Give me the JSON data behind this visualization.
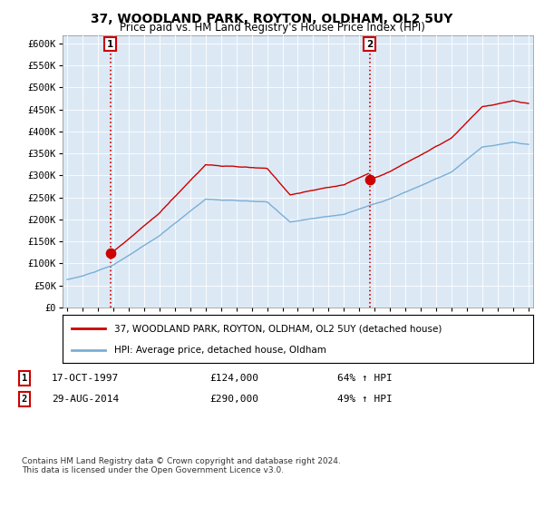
{
  "title": "37, WOODLAND PARK, ROYTON, OLDHAM, OL2 5UY",
  "subtitle": "Price paid vs. HM Land Registry's House Price Index (HPI)",
  "ylabel_ticks": [
    "£0",
    "£50K",
    "£100K",
    "£150K",
    "£200K",
    "£250K",
    "£300K",
    "£350K",
    "£400K",
    "£450K",
    "£500K",
    "£550K",
    "£600K"
  ],
  "ytick_values": [
    0,
    50000,
    100000,
    150000,
    200000,
    250000,
    300000,
    350000,
    400000,
    450000,
    500000,
    550000,
    600000
  ],
  "sale1_date": 1997.8,
  "sale1_price": 124000,
  "sale2_date": 2014.66,
  "sale2_price": 290000,
  "legend_line1": "37, WOODLAND PARK, ROYTON, OLDHAM, OL2 5UY (detached house)",
  "legend_line2": "HPI: Average price, detached house, Oldham",
  "footnote": "Contains HM Land Registry data © Crown copyright and database right 2024.\nThis data is licensed under the Open Government Licence v3.0.",
  "hpi_color": "#7aaed6",
  "price_color": "#cc0000",
  "dashed_line_color": "#cc0000",
  "background_color": "#ffffff",
  "plot_bg_color": "#dce9f5",
  "grid_color": "#ffffff"
}
